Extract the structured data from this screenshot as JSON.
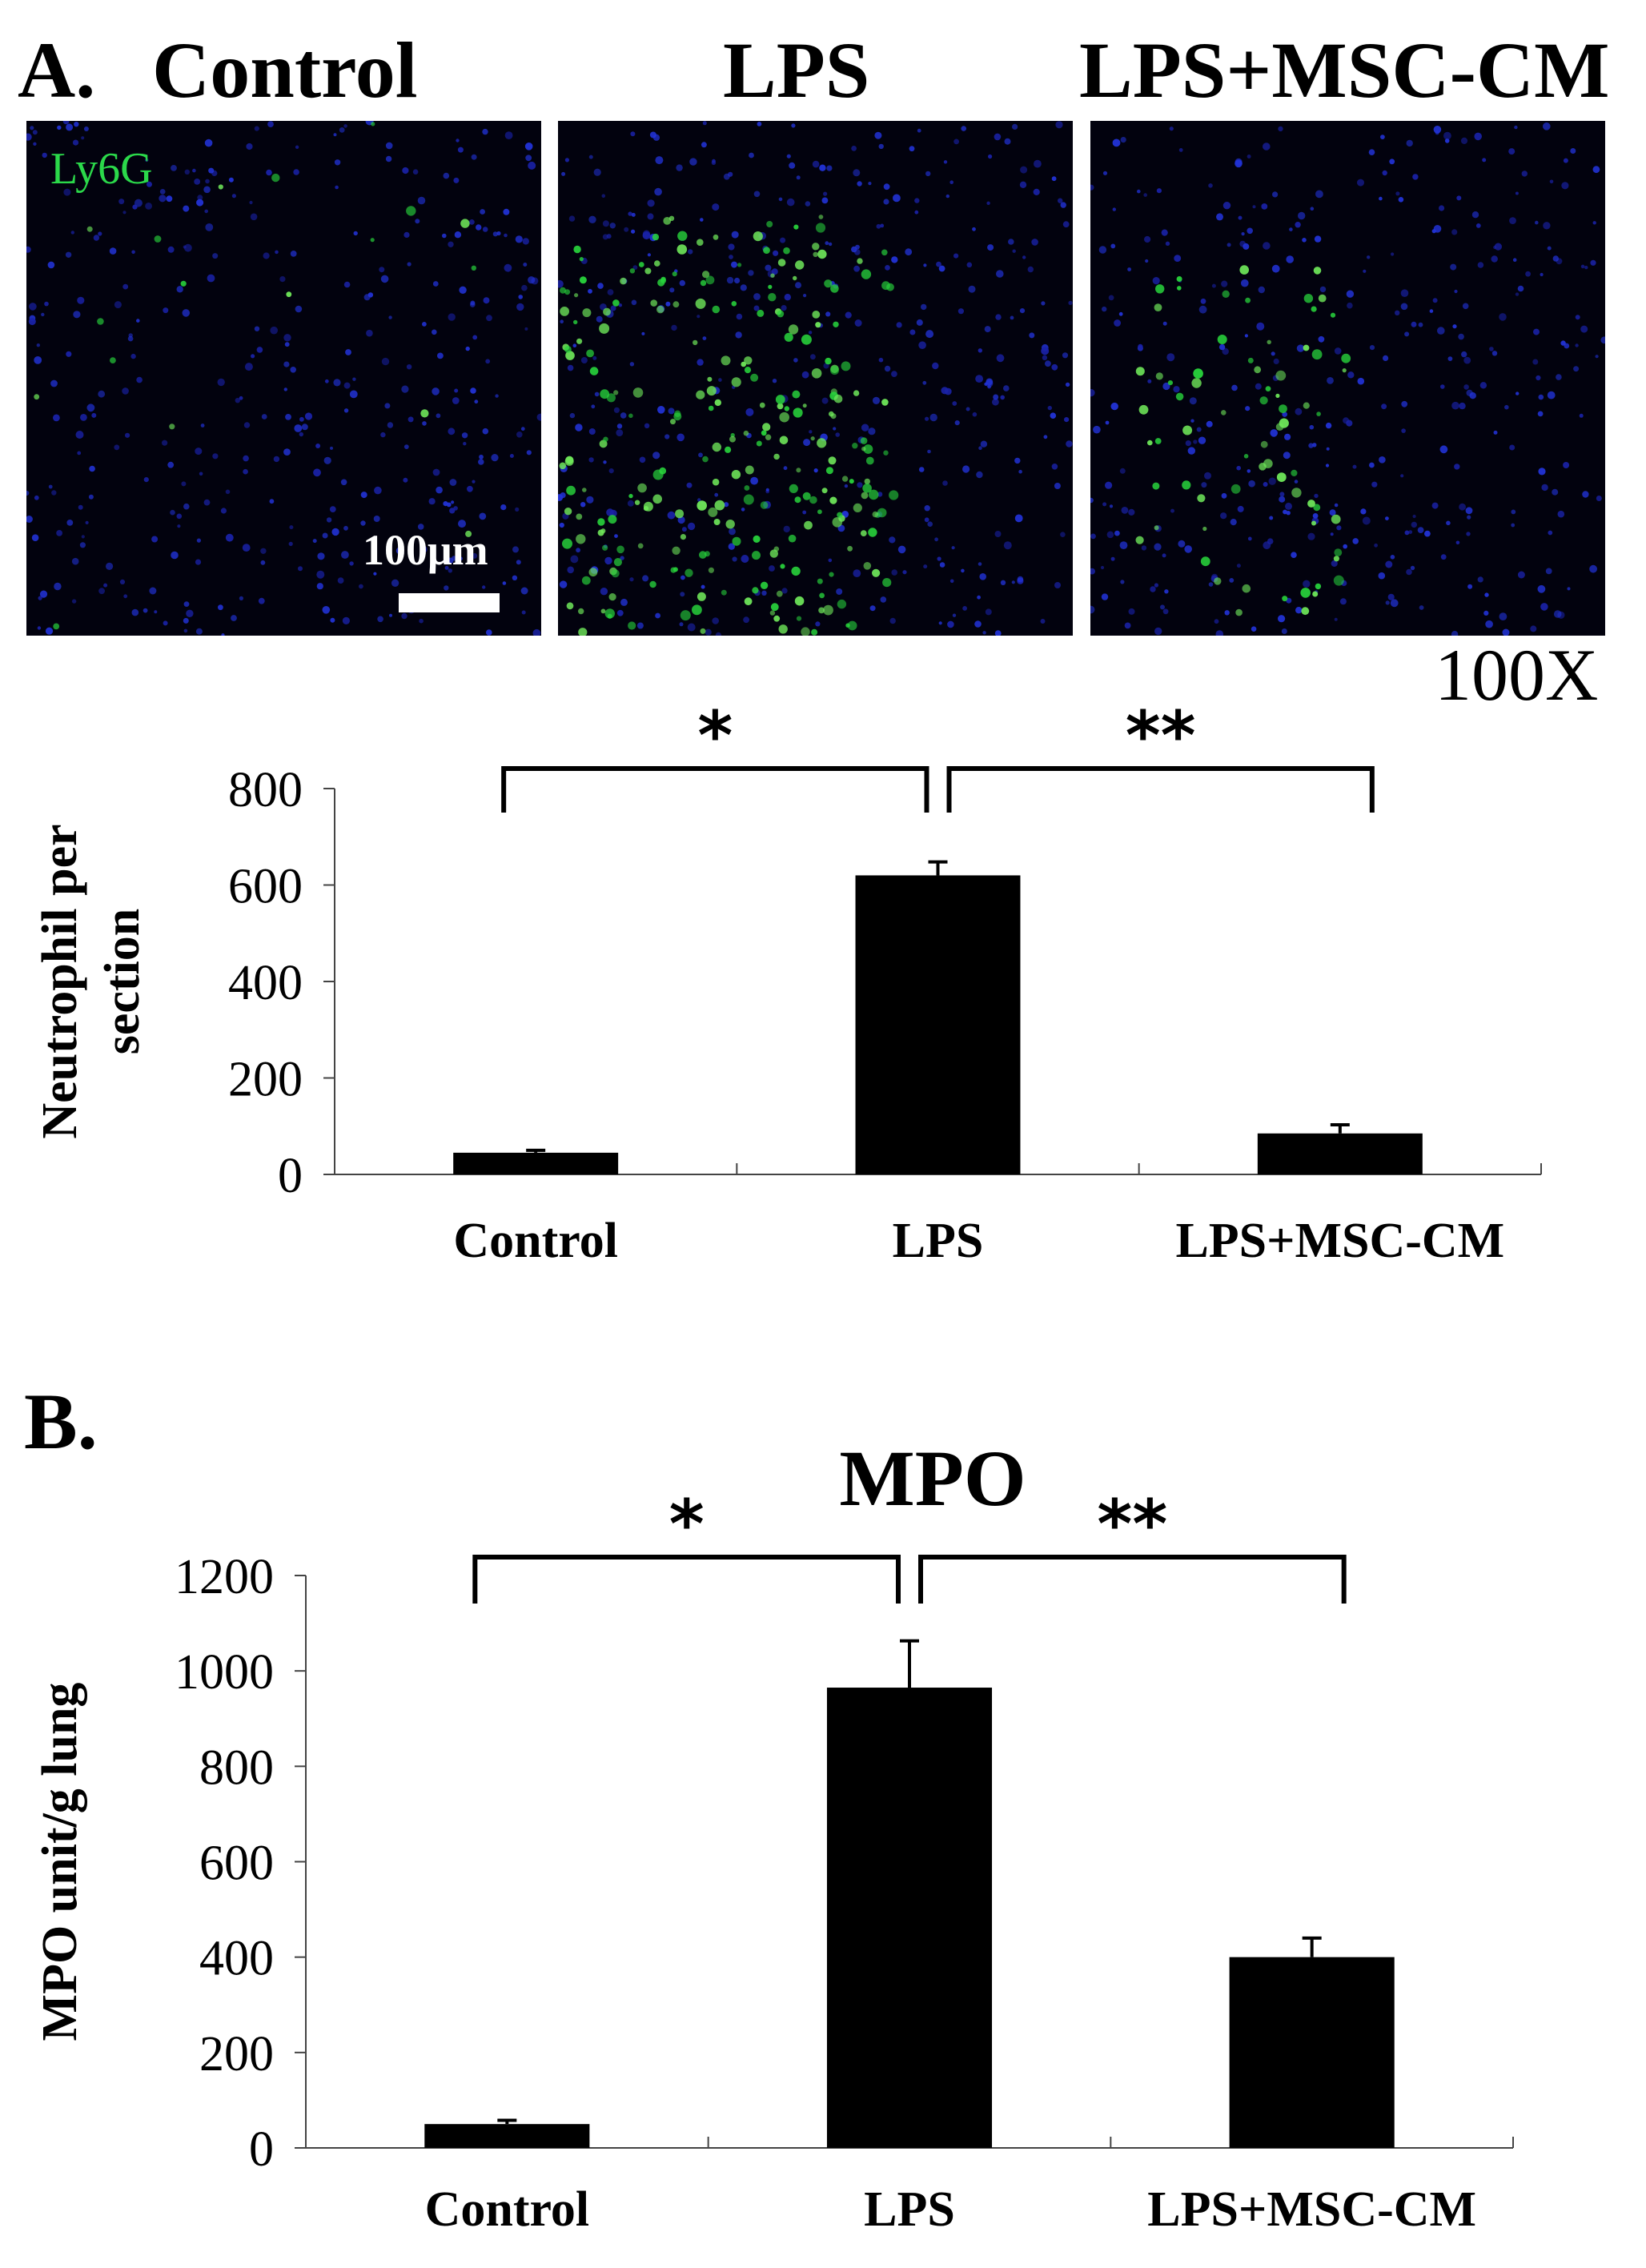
{
  "panel_a": {
    "letter": "A.",
    "images": [
      {
        "label": "Control",
        "seed": 11,
        "blue": 360,
        "green": 18,
        "green_region": "none"
      },
      {
        "label": "LPS",
        "seed": 23,
        "blue": 380,
        "green": 260,
        "green_region": "left-lower"
      },
      {
        "label": "LPS+MSC-CM",
        "seed": 37,
        "blue": 360,
        "green": 70,
        "green_region": "left-band"
      }
    ],
    "stain_label": "Ly6G",
    "scale_bar_label": "100μm",
    "magnification": "100X"
  },
  "panel_b": {
    "letter": "B."
  },
  "chart_data": [
    {
      "type": "bar",
      "title": "",
      "xlabel": "",
      "ylabel": "Neutrophil per section",
      "categories": [
        "Control",
        "LPS",
        "LPS+MSC-CM"
      ],
      "values": [
        45,
        620,
        85
      ],
      "errors": [
        5,
        28,
        18
      ],
      "ylim": [
        0,
        800
      ],
      "yticks": [
        0,
        200,
        400,
        600,
        800
      ],
      "bar_color": "#000000",
      "grid": false,
      "significance": [
        {
          "from": 0,
          "to": 1,
          "label": "*"
        },
        {
          "from": 1,
          "to": 2,
          "label": "**"
        }
      ]
    },
    {
      "type": "bar",
      "title": "MPO",
      "xlabel": "",
      "ylabel": "MPO unit/g lung",
      "categories": [
        "Control",
        "LPS",
        "LPS+MSC-CM"
      ],
      "values": [
        50,
        965,
        400
      ],
      "errors": [
        8,
        98,
        40
      ],
      "ylim": [
        0,
        1200
      ],
      "yticks": [
        0,
        200,
        400,
        600,
        800,
        1000,
        1200
      ],
      "bar_color": "#000000",
      "grid": false,
      "significance": [
        {
          "from": 0,
          "to": 1,
          "label": "*"
        },
        {
          "from": 1,
          "to": 2,
          "label": "**"
        }
      ]
    }
  ]
}
